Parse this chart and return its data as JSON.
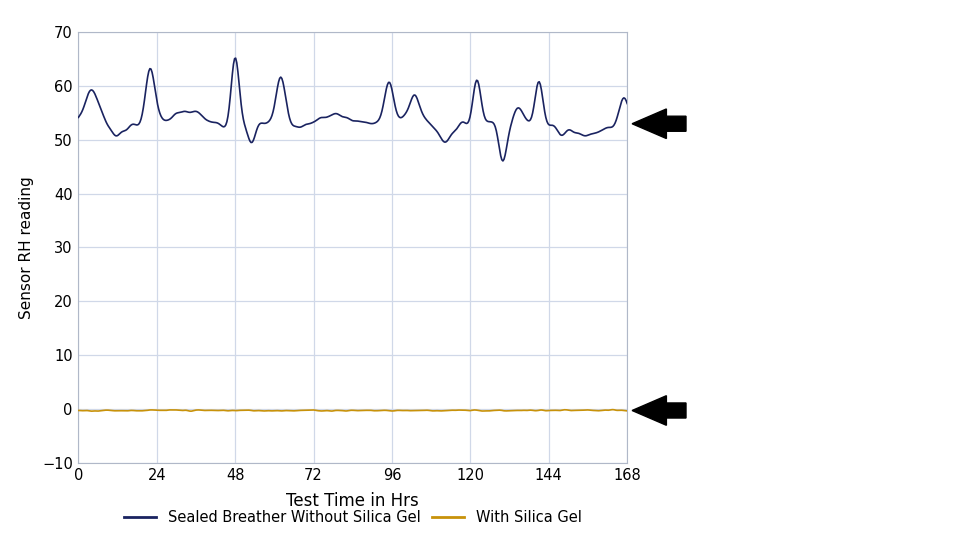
{
  "title": "",
  "xlabel": "Test Time in Hrs",
  "ylabel": "Sensor RH reading",
  "xlim": [
    0,
    168
  ],
  "ylim": [
    -10,
    70
  ],
  "yticks": [
    -10,
    0,
    10,
    20,
    30,
    40,
    50,
    60,
    70
  ],
  "xticks": [
    0,
    24,
    48,
    72,
    96,
    120,
    144,
    168
  ],
  "line1_color": "#1a2360",
  "line2_color": "#c8920a",
  "legend_label1": "Sealed Breather Without Silica Gel",
  "legend_label2": "With Silica Gel",
  "background_color": "#ffffff",
  "plot_bg_color": "#ffffff",
  "grid_color": "#d0d8e8",
  "navy_base": 53.0,
  "navy_noise_scale": 1.2,
  "orange_value": -0.3
}
